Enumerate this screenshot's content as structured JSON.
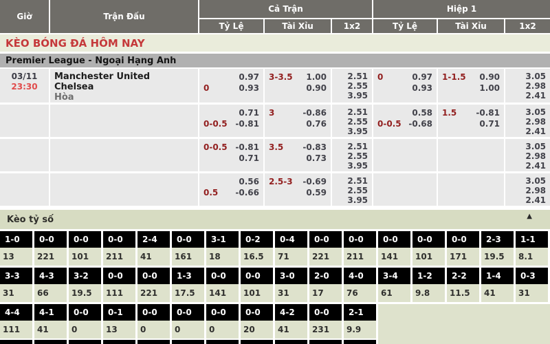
{
  "colors": {
    "header_bg": "#6f6d68",
    "header_text": "#ffffff",
    "title_bg": "#eaecdb",
    "title_text": "#c5393b",
    "league_bg": "#b1b1b1",
    "row_bg": "#e9e9e9",
    "odds_text": "#42424a",
    "handicap_red": "#921f1f",
    "time_red": "#e14b4b",
    "band_bg": "#d7dcc2",
    "score_head_bg": "#000000",
    "score_head_text": "#ffffff",
    "score_val_bg": "#dee2cc",
    "score_val_text": "#30302e"
  },
  "table_header": {
    "time": "Giờ",
    "match": "Trận Đấu",
    "full_time": "Cả Trận",
    "first_half": "Hiệp 1",
    "handicap": "Tỷ Lệ",
    "over_under": "Tài Xỉu",
    "one_x_two": "1x2"
  },
  "section_title": "KÈO BÓNG ĐÁ HÔM NAY",
  "league_title": "Premier League - Ngoại Hạng Anh",
  "match": {
    "date": "03/11",
    "time": "23:30",
    "home_team": "Manchester United",
    "away_team": "Chelsea",
    "draw_label": "Hòa"
  },
  "odds_rows": [
    {
      "ft_handicap": {
        "label": "0",
        "label_line": 2,
        "top": "0.97",
        "bottom": "0.93"
      },
      "ft_ou": {
        "label": "3-3.5",
        "label_line": 1,
        "top": "1.00",
        "bottom": "0.90"
      },
      "ft_1x2": [
        "2.51",
        "2.55",
        "3.95"
      ],
      "h1_handicap": {
        "label": "0",
        "label_line": 1,
        "top": "0.97",
        "bottom": "0.93"
      },
      "h1_ou": {
        "label": "1-1.5",
        "label_line": 1,
        "top": "0.90",
        "bottom": "1.00"
      },
      "h1_1x2": [
        "3.05",
        "2.98",
        "2.41"
      ]
    },
    {
      "ft_handicap": {
        "label": "0-0.5",
        "label_line": 2,
        "top": "0.71",
        "bottom": "-0.81"
      },
      "ft_ou": {
        "label": "3",
        "label_line": 1,
        "top": "-0.86",
        "bottom": "0.76"
      },
      "ft_1x2": [
        "2.51",
        "2.55",
        "3.95"
      ],
      "h1_handicap": {
        "label": "0-0.5",
        "label_line": 2,
        "top": "0.58",
        "bottom": "-0.68"
      },
      "h1_ou": {
        "label": "1.5",
        "label_line": 1,
        "top": "-0.81",
        "bottom": "0.71"
      },
      "h1_1x2": [
        "3.05",
        "2.98",
        "2.41"
      ]
    },
    {
      "ft_handicap": {
        "label": "0-0.5",
        "label_line": 1,
        "top": "-0.81",
        "bottom": "0.71"
      },
      "ft_ou": {
        "label": "3.5",
        "label_line": 1,
        "top": "-0.83",
        "bottom": "0.73"
      },
      "ft_1x2": [
        "2.51",
        "2.55",
        "3.95"
      ],
      "h1_handicap": null,
      "h1_ou": null,
      "h1_1x2": [
        "3.05",
        "2.98",
        "2.41"
      ]
    },
    {
      "ft_handicap": {
        "label": "0.5",
        "label_line": 2,
        "top": "0.56",
        "bottom": "-0.66"
      },
      "ft_ou": {
        "label": "2.5-3",
        "label_line": 1,
        "top": "-0.69",
        "bottom": "0.59"
      },
      "ft_1x2": [
        "2.51",
        "2.55",
        "3.95"
      ],
      "h1_handicap": null,
      "h1_ou": null,
      "h1_1x2": [
        "3.05",
        "2.98",
        "2.41"
      ]
    }
  ],
  "score_section": {
    "title": "Kèo tỷ số",
    "collapse_icon": "▲",
    "partial_row_cells": 11,
    "rows": [
      [
        {
          "score": "1-0",
          "value": "13"
        },
        {
          "score": "0-0",
          "value": "221"
        },
        {
          "score": "0-0",
          "value": "101"
        },
        {
          "score": "0-0",
          "value": "211"
        },
        {
          "score": "2-4",
          "value": "41"
        },
        {
          "score": "0-0",
          "value": "161"
        },
        {
          "score": "3-1",
          "value": "18"
        },
        {
          "score": "0-2",
          "value": "16.5"
        },
        {
          "score": "0-4",
          "value": "71"
        },
        {
          "score": "0-0",
          "value": "221"
        },
        {
          "score": "0-0",
          "value": "211"
        },
        {
          "score": "0-0",
          "value": "141"
        },
        {
          "score": "0-0",
          "value": "101"
        },
        {
          "score": "0-0",
          "value": "171"
        },
        {
          "score": "2-3",
          "value": "19.5"
        },
        {
          "score": "1-1",
          "value": "8.1"
        }
      ],
      [
        {
          "score": "3-3",
          "value": "31"
        },
        {
          "score": "4-3",
          "value": "66"
        },
        {
          "score": "3-2",
          "value": "19.5"
        },
        {
          "score": "0-0",
          "value": "111"
        },
        {
          "score": "0-0",
          "value": "221"
        },
        {
          "score": "1-3",
          "value": "17.5"
        },
        {
          "score": "0-0",
          "value": "141"
        },
        {
          "score": "0-0",
          "value": "101"
        },
        {
          "score": "3-0",
          "value": "31"
        },
        {
          "score": "2-0",
          "value": "17"
        },
        {
          "score": "4-0",
          "value": "76"
        },
        {
          "score": "3-4",
          "value": "61"
        },
        {
          "score": "1-2",
          "value": "9.8"
        },
        {
          "score": "2-2",
          "value": "11.5"
        },
        {
          "score": "1-4",
          "value": "41"
        },
        {
          "score": "0-3",
          "value": "31"
        }
      ],
      [
        {
          "score": "4-4",
          "value": "111"
        },
        {
          "score": "4-1",
          "value": "41"
        },
        {
          "score": "0-0",
          "value": "0"
        },
        {
          "score": "0-1",
          "value": "13"
        },
        {
          "score": "0-0",
          "value": "0"
        },
        {
          "score": "0-0",
          "value": "0"
        },
        {
          "score": "0-0",
          "value": "0"
        },
        {
          "score": "0-0",
          "value": "20"
        },
        {
          "score": "4-2",
          "value": "41"
        },
        {
          "score": "0-0",
          "value": "231"
        },
        {
          "score": "2-1",
          "value": "9.9"
        }
      ]
    ]
  }
}
